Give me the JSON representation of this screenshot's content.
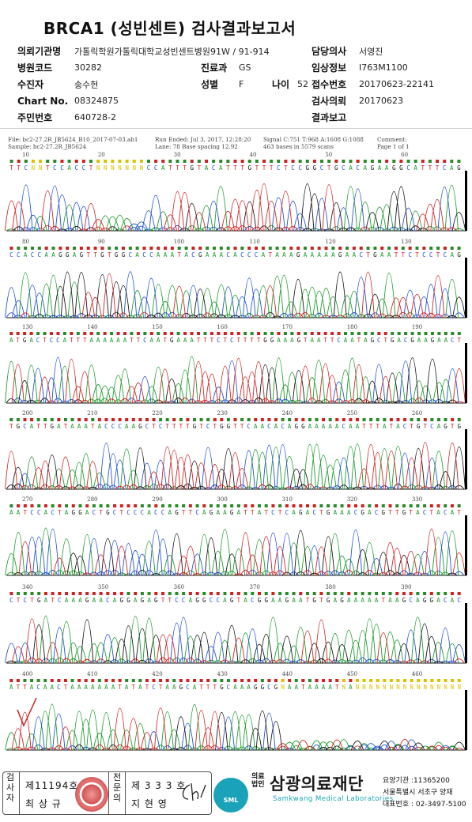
{
  "report": {
    "title": "BRCA1 (성빈센트) 검사결과보고서",
    "fields": {
      "institution_label": "의뢰기관명",
      "institution_value": "가톨릭학원가톨릭대학교성빈센트병원91W / 91-914",
      "hospital_code_label": "병원코드",
      "hospital_code_value": "30282",
      "department_label": "진료과",
      "department_value": "GS",
      "patient_label": "수진자",
      "patient_value": "송수헌",
      "sex_label": "성별",
      "sex_value": "F",
      "age_label": "나이",
      "age_value": "52",
      "chart_label": "Chart No.",
      "chart_value": "08324875",
      "id_label": "주민번호",
      "id_value": "640728-2",
      "doctor_label": "담당의사",
      "doctor_value": "서영진",
      "clinical_label": "임상정보",
      "clinical_value": "I763M1100",
      "receipt_label": "접수번호",
      "receipt_value": "20170623-22141",
      "request_label": "검사의뢰",
      "request_value": "20170623",
      "result_label": "결과보고",
      "result_value": ""
    }
  },
  "trace_meta": {
    "file": "File: bc2-27.2R_JB5624_B10_2017-07-03.ab1",
    "sample": "Sample: bc2-27.2R_JB5624",
    "run": "Run Ended: Jul 3, 2017, 12:28:20",
    "lane": "Lane: 78   Base spacing 12.92",
    "signal": "Signal C:751 T:968 A:1608 G:1088",
    "bases": "463 bases in 5579 scans",
    "comment": "Comment:",
    "page": "Page 1 of 1"
  },
  "sequence_rows": [
    {
      "ticks": [
        "10",
        "20",
        "30",
        "40",
        "50",
        "60"
      ],
      "seq": "TTCNNTCCACCTNNNNNNNCCATTTGTACATTTGTTTCTCCGGCTGCACAGAAGGCATTTCAG"
    },
    {
      "ticks": [
        "80",
        "90",
        "100",
        "110",
        "120",
        "130"
      ],
      "seq": "CCACCAAGGAGTTGTGGCACCAAATACGAAACACCCATAAAGAAAAAGAACTGAATTCTCCTCAG"
    },
    {
      "ticks": [
        "130",
        "140",
        "150",
        "160",
        "170",
        "180",
        "190"
      ],
      "seq": "ATGACTCCATTTAAAAAATTCAATGAAATTTCTCTTTTGGAAAGTAATTCAATAGCTGACGAAGAACT"
    },
    {
      "ticks": [
        "200",
        "210",
        "220",
        "230",
        "240",
        "250",
        "260"
      ],
      "seq": "TGCATTGATAAATACCCAAGCTCTTTTGTCTGGTTCAACACAGGAAAAACAATTTATACTGTCAGTG"
    },
    {
      "ticks": [
        "270",
        "280",
        "290",
        "300",
        "310",
        "320",
        "330"
      ],
      "seq": "AATCCACTAGGACTGCTCCCACCAGTTCAGAAGATTATCTCAGACTGAAACGACGTTGTACTACAT"
    },
    {
      "ticks": [
        "340",
        "350",
        "360",
        "370",
        "380",
        "390"
      ],
      "seq": "CTCTGATCAAAGAACAGGAGAGTTCCAGGCCAGTACGGAAGAATGTGAGAAAAATAAGCAGGACAC"
    },
    {
      "ticks": [
        "400",
        "410",
        "420",
        "430",
        "440",
        "450",
        "460"
      ],
      "seq": "ATTACAACTAAAAAAATATATCTAAGCATTTGCAAAGGCGNAATAAAATNANNNNNNNNNNNNNNNN"
    }
  ],
  "footer": {
    "examiner_label": "검사자",
    "examiner_no": "제11194호",
    "examiner_name": "최 상 규",
    "specialist_label": "전문의",
    "specialist_no": "제 3 3 3 호",
    "specialist_name": "지 현 영",
    "org_prefix": "의료법인",
    "org_name": "삼광의료재단",
    "org_english": "Samkwang Medical Laboratories",
    "logo_text": "SML",
    "care_no": "요양기관 :11365200",
    "address": "서울특별시 서초구 양재",
    "phone": "대표번호 : 02-3497-5100"
  },
  "colors": {
    "A": "#1a9a2a",
    "C": "#1f4fcf",
    "G": "#111111",
    "T": "#d02020",
    "N": "#d9c200"
  }
}
